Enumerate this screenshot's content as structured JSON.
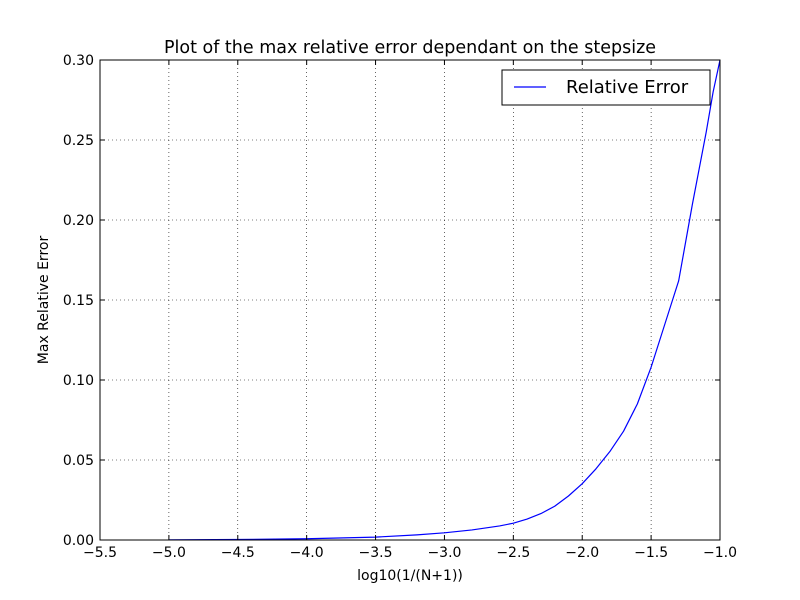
{
  "chart_data": {
    "type": "line",
    "title": "Plot of the max relative error dependant on the stepsize",
    "xlabel": "log10(1/(N+1))",
    "ylabel": "Max Relative Error",
    "xlim": [
      -5.5,
      -1.0
    ],
    "ylim": [
      0.0,
      0.3
    ],
    "xticks": [
      -5.5,
      -5.0,
      -4.5,
      -4.0,
      -3.5,
      -3.0,
      -2.5,
      -2.0,
      -1.5,
      -1.0
    ],
    "xtick_labels": [
      "−5.5",
      "−5.0",
      "−4.5",
      "−4.0",
      "−3.5",
      "−3.0",
      "−2.5",
      "−2.0",
      "−1.5",
      "−1.0"
    ],
    "yticks": [
      0.0,
      0.05,
      0.1,
      0.15,
      0.2,
      0.25,
      0.3
    ],
    "ytick_labels": [
      "0.00",
      "0.05",
      "0.10",
      "0.15",
      "0.20",
      "0.25",
      "0.30"
    ],
    "grid": true,
    "grid_style": "dotted",
    "legend_position": "top-right",
    "series": [
      {
        "name": "Relative Error",
        "color": "#0000ff",
        "x": [
          -5.0,
          -4.5,
          -4.0,
          -3.5,
          -3.2,
          -3.0,
          -2.8,
          -2.6,
          -2.5,
          -2.4,
          -2.3,
          -2.2,
          -2.1,
          -2.0,
          -1.9,
          -1.8,
          -1.7,
          -1.6,
          -1.5,
          -1.4,
          -1.3,
          -1.2,
          -1.1,
          -1.05,
          -1.0
        ],
        "y": [
          0.0001,
          0.0003,
          0.0008,
          0.0018,
          0.0032,
          0.0045,
          0.0063,
          0.0088,
          0.0105,
          0.0131,
          0.0165,
          0.0211,
          0.0275,
          0.0352,
          0.0445,
          0.0552,
          0.068,
          0.085,
          0.108,
          0.135,
          0.162,
          0.21,
          0.255,
          0.28,
          0.3
        ]
      }
    ]
  }
}
